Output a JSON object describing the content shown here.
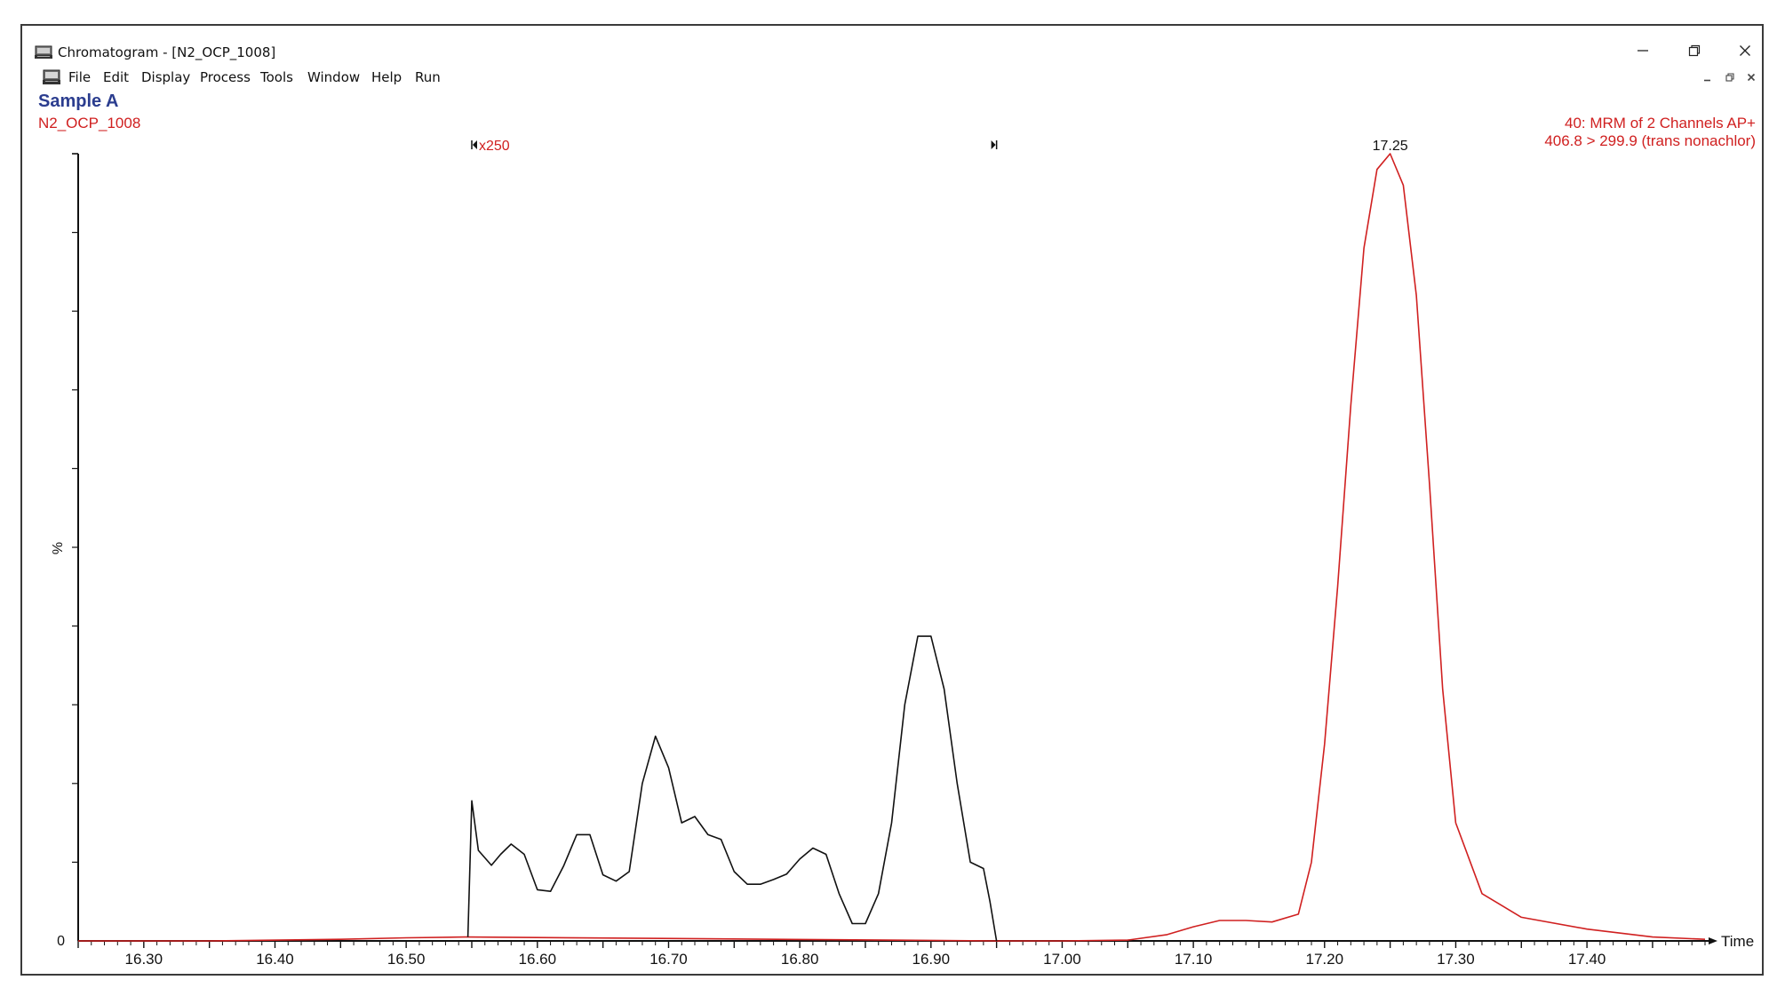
{
  "window": {
    "title": "Chromatogram - [N2_OCP_1008]",
    "controls": {
      "minimize_icon": "minimize-icon",
      "restore_icon": "restore-icon",
      "close_icon": "close-icon"
    }
  },
  "menu": {
    "items": [
      "File",
      "Edit",
      "Display",
      "Process",
      "Tools",
      "Window",
      "Help",
      "Run"
    ]
  },
  "header": {
    "sample_name": "Sample A",
    "file_name": "N2_OCP_1008",
    "trace_line1": "40: MRM of 2 Channels AP+",
    "trace_line2": "406.8 > 299.9 (trans nonachlor)"
  },
  "colors": {
    "accent_blue": "#2b3d8f",
    "trace_red": "#d02020",
    "trace_black": "#111111"
  },
  "chart_data": {
    "type": "line",
    "xlabel": "Time",
    "ylabel": "%",
    "x_ticks": [
      "16.30",
      "16.40",
      "16.50",
      "16.60",
      "16.70",
      "16.80",
      "16.90",
      "17.00",
      "17.10",
      "17.20",
      "17.30",
      "17.40"
    ],
    "y_tick_labels": [
      "0"
    ],
    "xlim": [
      16.25,
      17.49
    ],
    "ylim": [
      0,
      100
    ],
    "grid": false,
    "zoom_marker": {
      "label": "x250",
      "x_start": 16.55,
      "x_end": 16.95
    },
    "peak_label": {
      "text": "17.25",
      "x": 17.25
    },
    "series": [
      {
        "color": "#d02020",
        "x": [
          16.25,
          16.35,
          16.45,
          16.5,
          16.545,
          16.95,
          17.0,
          17.05,
          17.08,
          17.1,
          17.12,
          17.14,
          17.16,
          17.18,
          17.19,
          17.2,
          17.21,
          17.22,
          17.23,
          17.24,
          17.25,
          17.26,
          17.27,
          17.28,
          17.29,
          17.3,
          17.32,
          17.35,
          17.4,
          17.45,
          17.49
        ],
        "y": [
          0,
          0,
          0.2,
          0.4,
          0.5,
          0,
          0,
          0.1,
          0.8,
          1.8,
          2.6,
          2.6,
          2.4,
          3.4,
          10,
          25,
          45,
          68,
          88,
          98,
          100,
          96,
          82,
          58,
          32,
          15,
          6,
          3,
          1.5,
          0.5,
          0.2
        ]
      },
      {
        "color": "#111111",
        "x": [
          16.547,
          16.55,
          16.555,
          16.565,
          16.572,
          16.58,
          16.59,
          16.6,
          16.61,
          16.62,
          16.63,
          16.64,
          16.65,
          16.66,
          16.67,
          16.68,
          16.69,
          16.7,
          16.71,
          16.72,
          16.73,
          16.74,
          16.75,
          16.76,
          16.77,
          16.78,
          16.79,
          16.8,
          16.81,
          16.82,
          16.83,
          16.84,
          16.85,
          16.86,
          16.87,
          16.88,
          16.89,
          16.9,
          16.91,
          16.92,
          16.93,
          16.94,
          16.945,
          16.95
        ],
        "y": [
          0.5,
          17.8,
          11.5,
          9.6,
          11,
          12.3,
          11,
          6.5,
          6.3,
          9.5,
          13.5,
          13.5,
          8.4,
          7.6,
          8.8,
          20,
          26,
          22,
          15,
          15.8,
          13.5,
          12.9,
          8.8,
          7.2,
          7.2,
          7.8,
          8.5,
          10.4,
          11.8,
          11,
          6,
          2.2,
          2.2,
          6,
          15,
          30,
          38.7,
          38.7,
          32,
          20,
          10,
          9.2,
          5,
          0
        ]
      }
    ]
  }
}
